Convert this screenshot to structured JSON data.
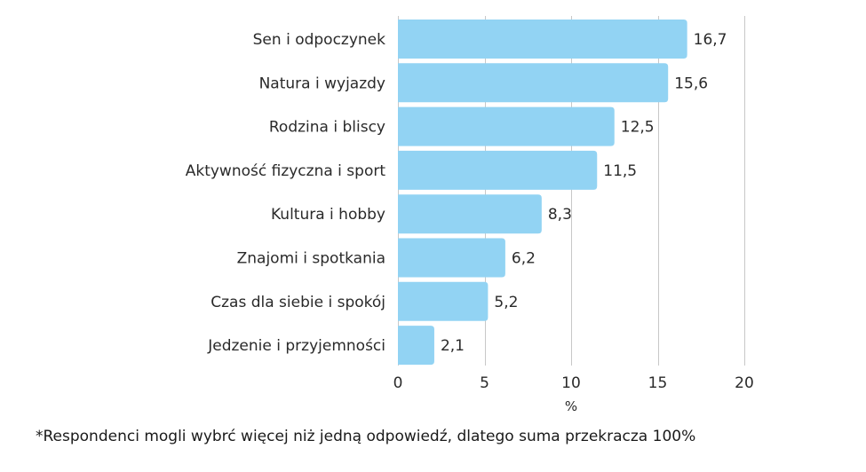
{
  "chart_data": {
    "type": "bar",
    "orientation": "horizontal",
    "categories": [
      "Sen i odpoczynek",
      "Natura i wyjazdy",
      "Rodzina i bliscy",
      "Aktywność fizyczna i sport",
      "Kultura i hobby",
      "Znajomi i spotkania",
      "Czas dla siebie i spokój",
      "Jedzenie i przyjemności"
    ],
    "values": [
      16.7,
      15.6,
      12.5,
      11.5,
      8.3,
      6.2,
      5.2,
      2.1
    ],
    "value_labels": [
      "16,7",
      "15,6",
      "12,5",
      "11,5",
      "8,3",
      "6,2",
      "5,2",
      "2,1"
    ],
    "xlabel": "%",
    "ylabel": "",
    "xlim": [
      0,
      20
    ],
    "xticks": [
      0,
      5,
      10,
      15,
      20
    ],
    "xtick_labels": [
      "0",
      "5",
      "10",
      "15",
      "20"
    ],
    "grid": true,
    "bar_color": "#92d3f3",
    "grid_color": "#c8c8c8"
  },
  "footnote": "*Respondenci mogli wybrć więcej niż jedną odpowiedź, dlatego suma przekracza 100%"
}
